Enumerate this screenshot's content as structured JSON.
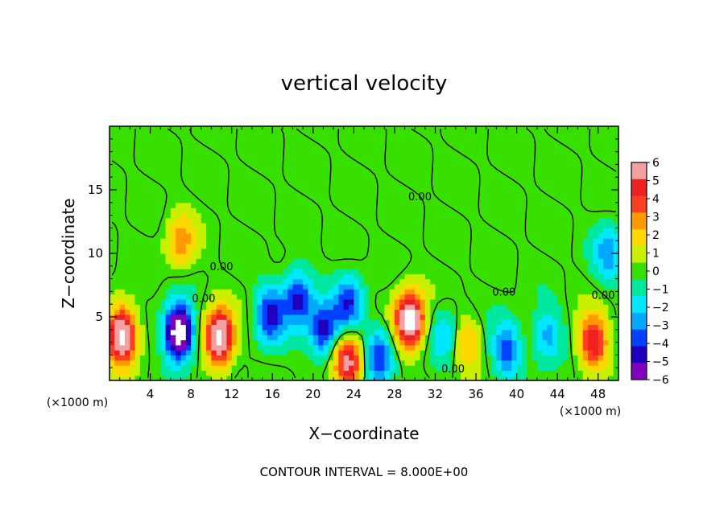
{
  "chart_data": {
    "type": "heatmap",
    "title": "vertical velocity",
    "xlabel": "X−coordinate",
    "ylabel": "Z−coordinate",
    "x_unit": "(×1000 m)",
    "y_unit": "(×1000 m)",
    "xlim": [
      0,
      50
    ],
    "ylim": [
      0,
      20
    ],
    "x_ticks": [
      "4",
      "8",
      "12",
      "16",
      "20",
      "24",
      "28",
      "32",
      "36",
      "40",
      "44",
      "48"
    ],
    "x_tick_values": [
      4,
      8,
      12,
      16,
      20,
      24,
      28,
      32,
      36,
      40,
      44,
      48
    ],
    "y_ticks": [
      "5",
      "10",
      "15"
    ],
    "y_tick_values": [
      5,
      10,
      15
    ],
    "colorbar": {
      "labels": [
        "6",
        "5",
        "4",
        "3",
        "2",
        "1",
        "0",
        "−1",
        "−2",
        "−3",
        "−4",
        "−5",
        "−6"
      ],
      "levels": [
        6,
        5,
        4,
        3,
        2,
        1,
        0,
        -1,
        -2,
        -3,
        -4,
        -5,
        -6
      ],
      "colors": [
        "#f4a0a0",
        "#ee2020",
        "#ff4020",
        "#ff9a00",
        "#ffd800",
        "#c8f000",
        "#38e000",
        "#00e8a0",
        "#00e8ff",
        "#00a8ff",
        "#0040ff",
        "#2000c0",
        "#8000c0"
      ]
    },
    "contour_labels": [
      "0.00"
    ],
    "contour_interval_text": "CONTOUR INTERVAL = 8.000E+00",
    "features": [
      {
        "x": 1.2,
        "z": 3.6,
        "w": 8.0
      },
      {
        "x": 6.8,
        "z": 3.8,
        "w": -9.0
      },
      {
        "x": 10.8,
        "z": 3.4,
        "w": 8.0
      },
      {
        "x": 7.0,
        "z": 11.0,
        "w": 3.0
      },
      {
        "x": 15.8,
        "z": 5.2,
        "w": -5.0
      },
      {
        "x": 18.5,
        "z": 6.5,
        "w": -5.0
      },
      {
        "x": 21.0,
        "z": 4.0,
        "w": -5.0
      },
      {
        "x": 23.5,
        "z": 6.0,
        "w": -4.5
      },
      {
        "x": 23.5,
        "z": 1.5,
        "w": 6.0
      },
      {
        "x": 26.5,
        "z": 2.0,
        "w": -4.5
      },
      {
        "x": 29.5,
        "z": 4.8,
        "w": 8.5
      },
      {
        "x": 33.0,
        "z": 3.5,
        "w": -2.5
      },
      {
        "x": 35.0,
        "z": 3.0,
        "w": 2.5
      },
      {
        "x": 39.0,
        "z": 2.5,
        "w": -4.0
      },
      {
        "x": 43.0,
        "z": 3.5,
        "w": -3.0
      },
      {
        "x": 47.5,
        "z": 3.0,
        "w": 5.5
      },
      {
        "x": 49.0,
        "z": 10.0,
        "w": -3.0
      }
    ]
  }
}
